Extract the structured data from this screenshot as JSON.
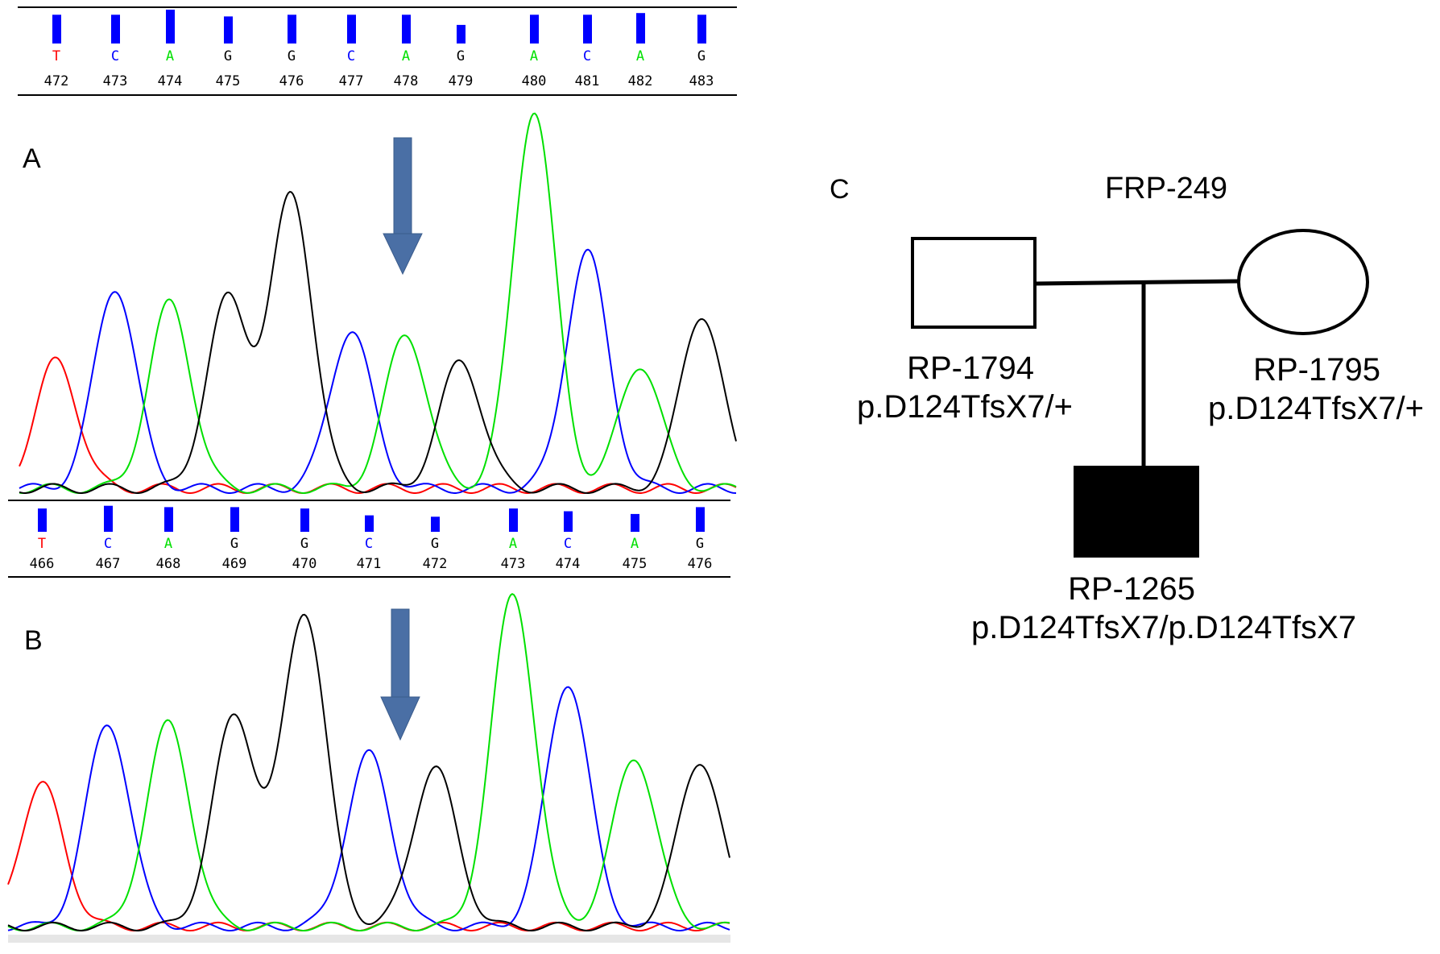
{
  "colors": {
    "A": "#00e000",
    "C": "#0000ff",
    "G": "#000000",
    "T": "#ff0000",
    "call_bar": "#0000ff",
    "arrow": "#4a6fa5",
    "affected": "#000000"
  },
  "panels": {
    "A": {
      "label": "A",
      "bases": [
        "T",
        "C",
        "A",
        "G",
        "G",
        "C",
        "A",
        "G",
        "A",
        "C",
        "A",
        "G"
      ],
      "positions": [
        "472",
        "473",
        "474",
        "475",
        "476",
        "477",
        "478",
        "479",
        "480",
        "481",
        "482",
        "483"
      ],
      "call_quality": [
        0.85,
        0.85,
        1.0,
        0.8,
        0.85,
        0.85,
        0.85,
        0.55,
        0.85,
        0.85,
        0.9,
        0.85
      ],
      "peak_heights": [
        0.33,
        0.52,
        0.48,
        0.49,
        0.76,
        0.41,
        0.4,
        0.33,
        0.98,
        0.61,
        0.32,
        0.45
      ],
      "mutation_arrow": "down"
    },
    "B": {
      "label": "B",
      "bases": [
        "T",
        "C",
        "A",
        "G",
        "G",
        "C",
        "G",
        "A",
        "C",
        "A",
        "G"
      ],
      "positions": [
        "466",
        "467",
        "468",
        "469",
        "470",
        "471",
        "472",
        "473",
        "474",
        "475",
        "476"
      ],
      "call_quality": [
        0.85,
        0.95,
        0.9,
        0.9,
        0.85,
        0.6,
        0.55,
        0.85,
        0.75,
        0.65,
        0.9
      ],
      "peak_heights": [
        0.42,
        0.6,
        0.6,
        0.62,
        0.93,
        0.51,
        0.47,
        0.98,
        0.72,
        0.5,
        0.49
      ],
      "mutation_arrow": "down"
    }
  },
  "pedigree": {
    "panel_label": "C",
    "family_id": "FRP-249",
    "father": {
      "id": "RP-1794",
      "genotype": "p.D124TfsX7/+",
      "sex": "male",
      "affected": false
    },
    "mother": {
      "id": "RP-1795",
      "genotype": "p.D124TfsX7/+",
      "sex": "female",
      "affected": false
    },
    "proband": {
      "id": "RP-1265",
      "genotype": "p.D124TfsX7/p.D124TfsX7",
      "sex": "male",
      "affected": true
    }
  }
}
